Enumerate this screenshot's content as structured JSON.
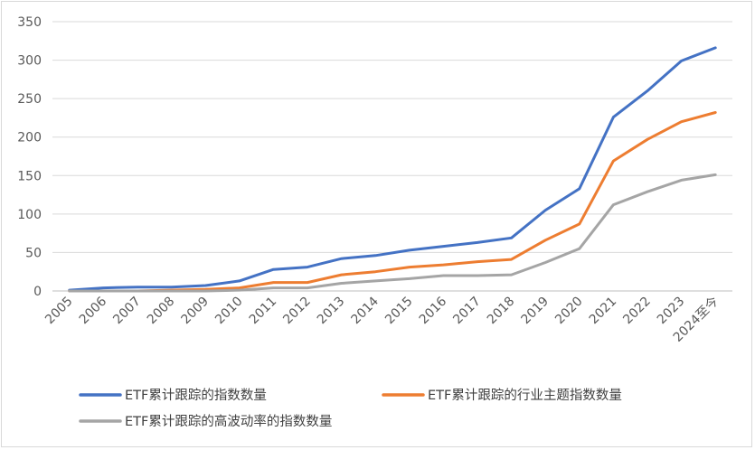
{
  "chart_data": {
    "type": "line",
    "title": "",
    "xlabel": "",
    "ylabel": "",
    "ylim": [
      0,
      350
    ],
    "yticks": [
      0,
      50,
      100,
      150,
      200,
      250,
      300,
      350
    ],
    "grid": "horizontal",
    "legend_position": "bottom",
    "categories": [
      "2005",
      "2006",
      "2007",
      "2008",
      "2009",
      "2010",
      "2011",
      "2012",
      "2013",
      "2014",
      "2015",
      "2016",
      "2017",
      "2018",
      "2019",
      "2020",
      "2021",
      "2022",
      "2023",
      "2024至今"
    ],
    "series": [
      {
        "name": "ETF累计跟踪的指数数量",
        "color": "#4472C4",
        "values": [
          1,
          4,
          5,
          5,
          7,
          13,
          28,
          31,
          42,
          46,
          53,
          58,
          63,
          69,
          105,
          133,
          226,
          260,
          299,
          316
        ]
      },
      {
        "name": "ETF累计跟踪的行业主题指数数量",
        "color": "#ED7D31",
        "values": [
          0,
          0,
          0,
          1,
          2,
          4,
          11,
          11,
          21,
          25,
          31,
          34,
          38,
          41,
          66,
          87,
          169,
          197,
          220,
          232
        ]
      },
      {
        "name": "ETF累计跟踪的高波动率的指数数量",
        "color": "#A5A5A5",
        "values": [
          0,
          0,
          0,
          0,
          0,
          1,
          4,
          4,
          10,
          13,
          16,
          20,
          20,
          21,
          37,
          55,
          112,
          129,
          144,
          151
        ]
      }
    ]
  }
}
